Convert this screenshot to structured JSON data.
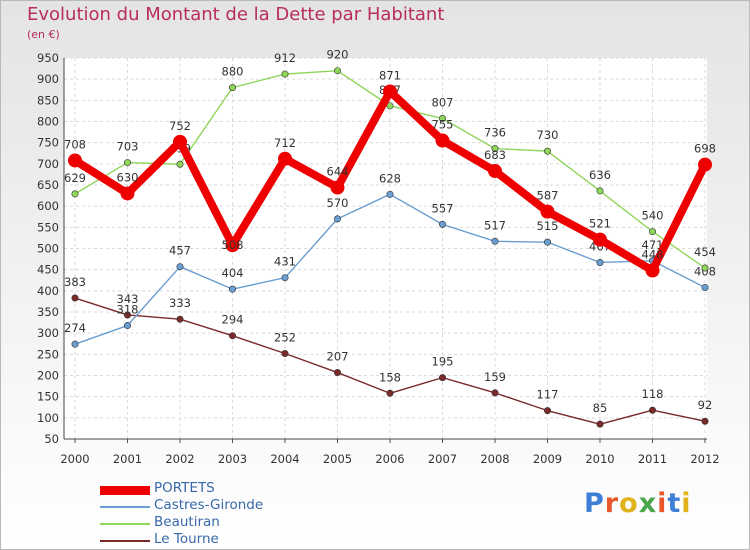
{
  "title": "Evolution du Montant de la Dette par Habitant",
  "unit": "(en €)",
  "logo": {
    "text": "Proxiti",
    "colors": [
      "#3d7fd6",
      "#e8562a",
      "#e0b21b",
      "#4aa64a",
      "#e8562a",
      "#3d7fd6",
      "#e0b21b"
    ]
  },
  "chart_data": {
    "type": "line",
    "x": [
      "2000",
      "2001",
      "2002",
      "2003",
      "2004",
      "2005",
      "2006",
      "2007",
      "2008",
      "2009",
      "2010",
      "2011",
      "2012"
    ],
    "ylim": [
      50,
      950
    ],
    "yticks": [
      50,
      100,
      150,
      200,
      250,
      300,
      350,
      400,
      450,
      500,
      550,
      600,
      650,
      700,
      750,
      800,
      850,
      900,
      950
    ],
    "grid": true,
    "legend_position": "bottom-left",
    "series": [
      {
        "name": "PORTETS",
        "color": "#ee0000",
        "values": [
          708,
          630,
          752,
          508,
          712,
          644,
          871,
          755,
          683,
          587,
          521,
          448,
          698
        ]
      },
      {
        "name": "Castres-Gironde",
        "color": "#6a9ed0",
        "values": [
          274,
          318,
          457,
          404,
          431,
          570,
          628,
          557,
          517,
          515,
          467,
          471,
          408
        ]
      },
      {
        "name": "Beautiran",
        "color": "#8ed65a",
        "values": [
          629,
          703,
          699,
          880,
          912,
          920,
          837,
          807,
          736,
          730,
          636,
          540,
          454
        ]
      },
      {
        "name": "Le Tourne",
        "color": "#7a2a2a",
        "values": [
          383,
          343,
          333,
          294,
          252,
          207,
          158,
          195,
          159,
          117,
          85,
          118,
          92
        ]
      }
    ]
  }
}
